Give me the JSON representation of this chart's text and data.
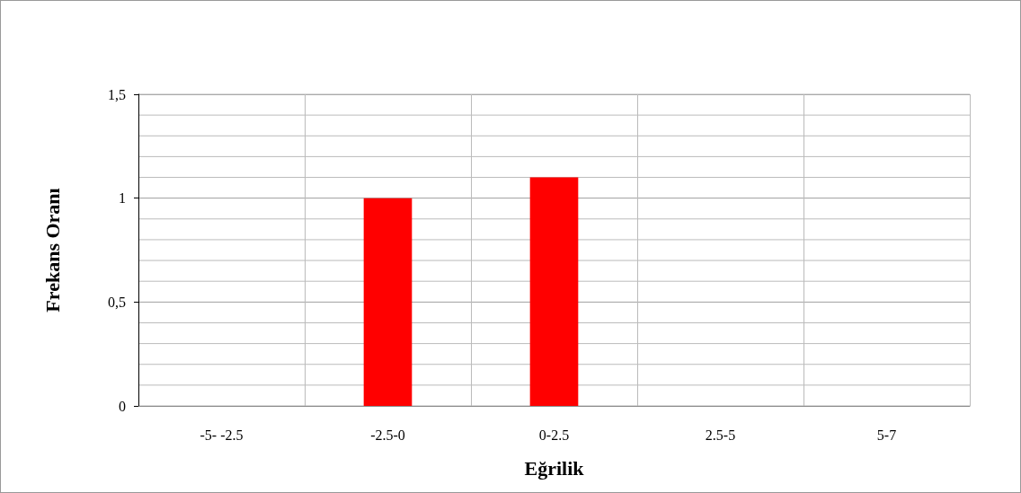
{
  "chart_data": {
    "type": "bar",
    "xlabel": "Eğrilik",
    "ylabel": "Frekans Oranı",
    "categories": [
      "-5- -2.5",
      "-2.5-0",
      "0-2.5",
      "2.5-5",
      "5-7"
    ],
    "values": [
      0,
      1,
      1.1,
      0,
      0
    ],
    "color": "#ff0000",
    "ylim": [
      0,
      1.5
    ],
    "yticks": [
      0,
      {
        "value": 0.1,
        "label": null
      },
      {
        "value": 0.2,
        "label": null
      },
      {
        "value": 0.3,
        "label": null
      },
      {
        "value": 0.4,
        "label": null
      },
      {
        "value": 0.5,
        "label": "0,5"
      },
      {
        "value": 0.6,
        "label": null
      },
      {
        "value": 0.7,
        "label": null
      },
      {
        "value": 0.8,
        "label": null
      },
      {
        "value": 0.9,
        "label": null
      },
      1,
      {
        "value": 1.1,
        "label": null
      },
      {
        "value": 1.2,
        "label": null
      },
      {
        "value": 1.3,
        "label": null
      },
      {
        "value": 1.4,
        "label": null
      },
      {
        "value": 1.5,
        "label": "1,5"
      }
    ],
    "grid": true
  }
}
